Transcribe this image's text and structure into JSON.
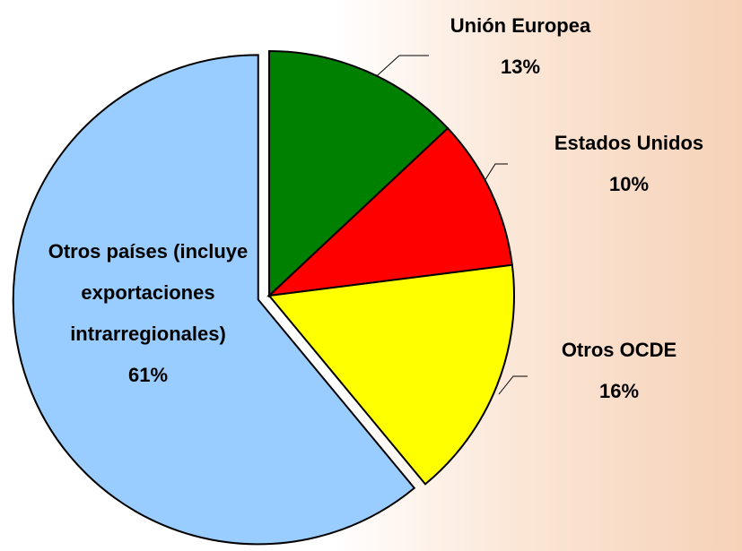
{
  "chart_data": {
    "type": "pie",
    "categories": [
      "Unión Europea",
      "Estados Unidos",
      "Otros OCDE",
      "Otros países (incluye exportaciones intrarregionales)"
    ],
    "values": [
      13,
      10,
      16,
      61
    ],
    "value_labels": [
      "13%",
      "10%",
      "16%",
      "61%"
    ],
    "colors": [
      "#008000",
      "#ff0000",
      "#ffff00",
      "#99ccff"
    ],
    "exploded": [
      false,
      false,
      false,
      true
    ]
  }
}
